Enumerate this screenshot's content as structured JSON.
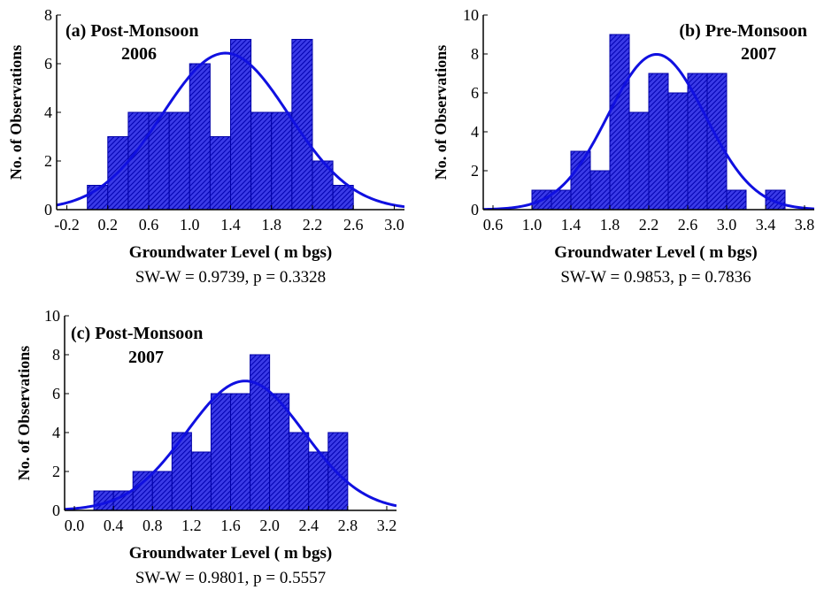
{
  "chart_data": [
    {
      "type": "bar",
      "title_lines": [
        "(a) Post-Monsoon",
        "2006"
      ],
      "xlabel": "Groundwater Level ( m bgs)",
      "ylabel": "No. of Observations",
      "stat": "SW-W = 0.9739, p = 0.3328",
      "xlim": [
        -0.3,
        3.1
      ],
      "ylim": [
        0,
        8
      ],
      "xticks": [
        -0.2,
        0.2,
        0.6,
        1.0,
        1.4,
        1.8,
        2.2,
        2.6,
        3.0
      ],
      "xtick_labels": [
        "-0.2",
        "0.2",
        "0.6",
        "1.0",
        "1.4",
        "1.8",
        "2.2",
        "2.6",
        "3.0"
      ],
      "yticks": [
        0,
        2,
        4,
        6,
        8
      ],
      "ytick_labels": [
        "0",
        "2",
        "4",
        "6",
        "8"
      ],
      "bin_width": 0.2,
      "bins": [
        {
          "x0": 0.0,
          "x1": 0.2,
          "value": 1
        },
        {
          "x0": 0.2,
          "x1": 0.4,
          "value": 3
        },
        {
          "x0": 0.4,
          "x1": 0.6,
          "value": 4
        },
        {
          "x0": 0.6,
          "x1": 0.8,
          "value": 4
        },
        {
          "x0": 0.8,
          "x1": 1.0,
          "value": 4
        },
        {
          "x0": 1.0,
          "x1": 1.2,
          "value": 6
        },
        {
          "x0": 1.2,
          "x1": 1.4,
          "value": 3
        },
        {
          "x0": 1.4,
          "x1": 1.6,
          "value": 7
        },
        {
          "x0": 1.6,
          "x1": 1.8,
          "value": 4
        },
        {
          "x0": 1.8,
          "x1": 2.0,
          "value": 4
        },
        {
          "x0": 2.0,
          "x1": 2.2,
          "value": 7
        },
        {
          "x0": 2.2,
          "x1": 2.4,
          "value": 2
        },
        {
          "x0": 2.4,
          "x1": 2.6,
          "value": 1
        }
      ],
      "fit": {
        "type": "normal",
        "mean": 1.35,
        "sd": 0.62,
        "n": 50
      },
      "bar_color": "#1f1fd6",
      "bar_edge": "#0000a8",
      "curve_color": "#1010e0"
    },
    {
      "type": "bar",
      "title_lines": [
        "(b) Pre-Monsoon",
        "2007"
      ],
      "xlabel": "Groundwater Level ( m bgs)",
      "ylabel": "No. of Observations",
      "stat": "SW-W = 0.9853, p = 0.7836",
      "xlim": [
        0.5,
        3.9
      ],
      "ylim": [
        0,
        10
      ],
      "xticks": [
        0.6,
        1.0,
        1.4,
        1.8,
        2.2,
        2.6,
        3.0,
        3.4,
        3.8
      ],
      "xtick_labels": [
        "0.6",
        "1.0",
        "1.4",
        "1.8",
        "2.2",
        "2.6",
        "3.0",
        "3.4",
        "3.8"
      ],
      "yticks": [
        0,
        2,
        4,
        6,
        8,
        10
      ],
      "ytick_labels": [
        "0",
        "2",
        "4",
        "6",
        "8",
        "10"
      ],
      "bin_width": 0.2,
      "bins": [
        {
          "x0": 1.0,
          "x1": 1.2,
          "value": 1
        },
        {
          "x0": 1.2,
          "x1": 1.4,
          "value": 1
        },
        {
          "x0": 1.4,
          "x1": 1.6,
          "value": 3
        },
        {
          "x0": 1.6,
          "x1": 1.8,
          "value": 2
        },
        {
          "x0": 1.8,
          "x1": 2.0,
          "value": 9
        },
        {
          "x0": 2.0,
          "x1": 2.2,
          "value": 5
        },
        {
          "x0": 2.2,
          "x1": 2.4,
          "value": 7
        },
        {
          "x0": 2.4,
          "x1": 2.6,
          "value": 6
        },
        {
          "x0": 2.6,
          "x1": 2.8,
          "value": 7
        },
        {
          "x0": 2.8,
          "x1": 3.0,
          "value": 7
        },
        {
          "x0": 3.0,
          "x1": 3.2,
          "value": 1
        },
        {
          "x0": 3.2,
          "x1": 3.4,
          "value": 0
        },
        {
          "x0": 3.4,
          "x1": 3.6,
          "value": 1
        }
      ],
      "fit": {
        "type": "normal",
        "mean": 2.28,
        "sd": 0.5,
        "n": 50
      },
      "bar_color": "#1f1fd6",
      "bar_edge": "#0000a8",
      "curve_color": "#1010e0"
    },
    {
      "type": "bar",
      "title_lines": [
        "(c) Post-Monsoon",
        "2007"
      ],
      "xlabel": "Groundwater Level ( m bgs)",
      "ylabel": "No. of Observations",
      "stat": "SW-W = 0.9801, p = 0.5557",
      "xlim": [
        -0.1,
        3.3
      ],
      "ylim": [
        0,
        10
      ],
      "xticks": [
        0.0,
        0.4,
        0.8,
        1.2,
        1.6,
        2.0,
        2.4,
        2.8,
        3.2
      ],
      "xtick_labels": [
        "0.0",
        "0.4",
        "0.8",
        "1.2",
        "1.6",
        "2.0",
        "2.4",
        "2.8",
        "3.2"
      ],
      "yticks": [
        0,
        2,
        4,
        6,
        8,
        10
      ],
      "ytick_labels": [
        "0",
        "2",
        "4",
        "6",
        "8",
        "10"
      ],
      "bin_width": 0.2,
      "bins": [
        {
          "x0": 0.2,
          "x1": 0.4,
          "value": 1
        },
        {
          "x0": 0.4,
          "x1": 0.6,
          "value": 1
        },
        {
          "x0": 0.6,
          "x1": 0.8,
          "value": 2
        },
        {
          "x0": 0.8,
          "x1": 1.0,
          "value": 2
        },
        {
          "x0": 1.0,
          "x1": 1.2,
          "value": 4
        },
        {
          "x0": 1.2,
          "x1": 1.4,
          "value": 3
        },
        {
          "x0": 1.4,
          "x1": 1.6,
          "value": 6
        },
        {
          "x0": 1.6,
          "x1": 1.8,
          "value": 6
        },
        {
          "x0": 1.8,
          "x1": 2.0,
          "value": 8
        },
        {
          "x0": 2.0,
          "x1": 2.2,
          "value": 6
        },
        {
          "x0": 2.2,
          "x1": 2.4,
          "value": 4
        },
        {
          "x0": 2.4,
          "x1": 2.6,
          "value": 3
        },
        {
          "x0": 2.6,
          "x1": 2.8,
          "value": 4
        }
      ],
      "fit": {
        "type": "normal",
        "mean": 1.75,
        "sd": 0.6,
        "n": 50
      },
      "bar_color": "#1f1fd6",
      "bar_edge": "#0000a8",
      "curve_color": "#1010e0"
    }
  ]
}
